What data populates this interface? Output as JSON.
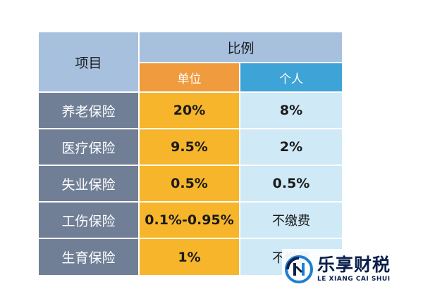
{
  "table": {
    "header": {
      "item": "项目",
      "ratio": "比例",
      "employer": "单位",
      "individual": "个人"
    },
    "rows": [
      {
        "label": "养老保险",
        "employer": "20%",
        "individual": "8%"
      },
      {
        "label": "医疗保险",
        "employer": "9.5%",
        "individual": "2%"
      },
      {
        "label": "失业保险",
        "employer": "0.5%",
        "individual": "0.5%"
      },
      {
        "label": "工伤保险",
        "employer": "0.1%-0.95%",
        "individual": "不缴费"
      },
      {
        "label": "生育保险",
        "employer": "1%",
        "individual": "不缴费"
      }
    ]
  },
  "watermark": {
    "name": "乐享财税",
    "subtitle": "LE XIANG CAI SHUI"
  },
  "colors": {
    "header_bg": "#a7c0de",
    "employer_header": "#f09b3d",
    "individual_header": "#3ea3d6",
    "label_bg": "#717f96",
    "employer_bg": "#f6b52b",
    "individual_bg": "#cfe9f6"
  }
}
